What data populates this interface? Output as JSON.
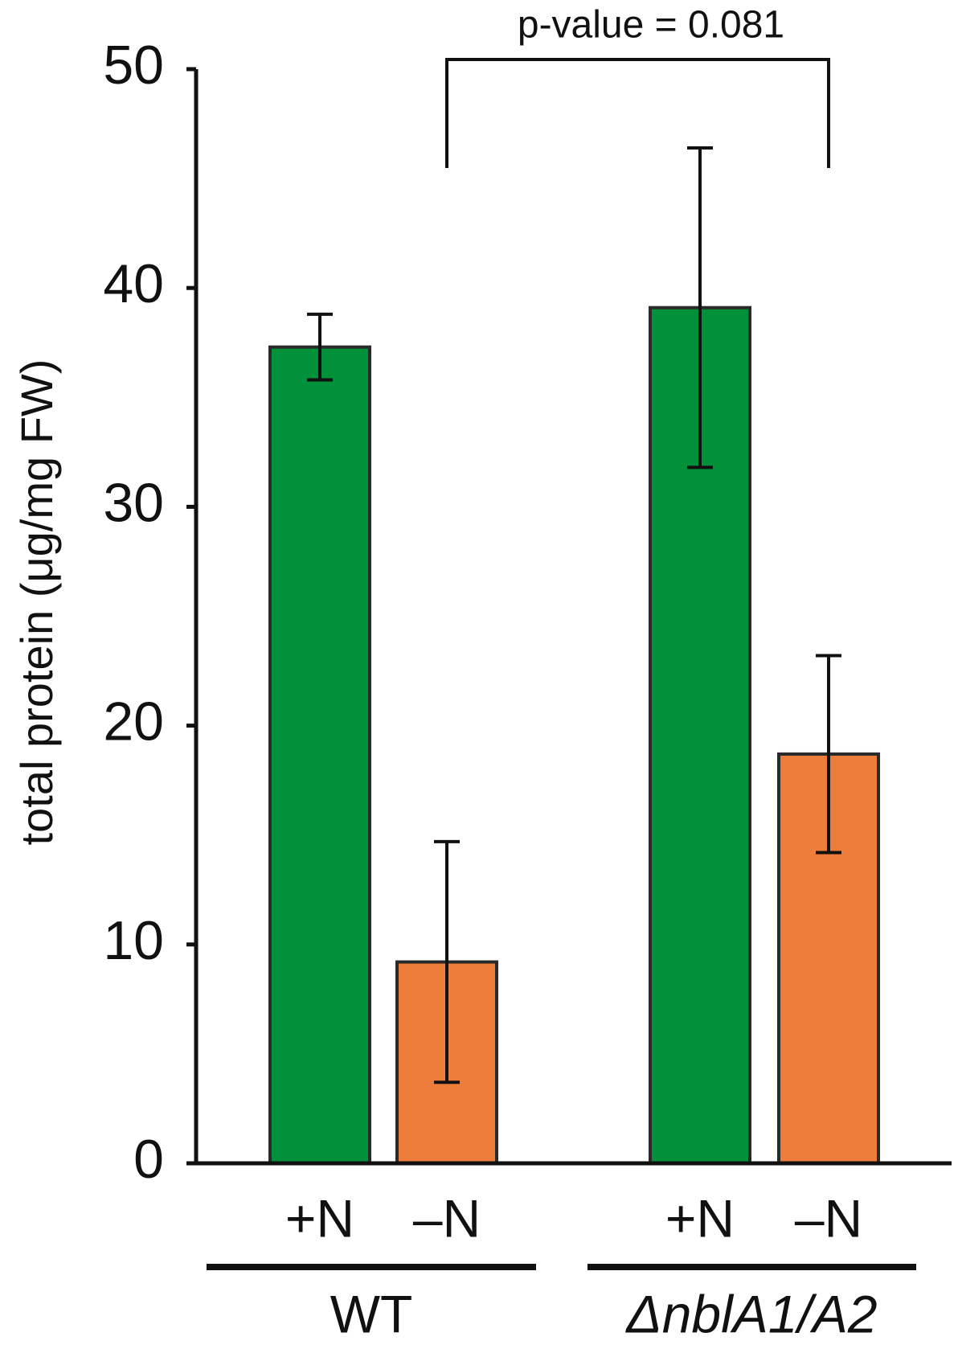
{
  "chart_data": {
    "type": "bar",
    "y_label": "total protein (μg/mg FW)",
    "categories": [
      "+N",
      "–N",
      "+N",
      "–N"
    ],
    "groups": [
      "WT",
      "ΔnblA1/A2"
    ],
    "values": [
      37.3,
      9.2,
      39.1,
      18.7
    ],
    "errors": [
      1.5,
      5.5,
      7.3,
      4.5
    ],
    "colors": [
      "#00913a",
      "#ed7d3a",
      "#00913a",
      "#ed7d3a"
    ],
    "annotation": "p-value = 0.081",
    "ylim": [
      0,
      50
    ],
    "yticks": [
      0,
      10,
      20,
      30,
      40,
      50
    ]
  }
}
